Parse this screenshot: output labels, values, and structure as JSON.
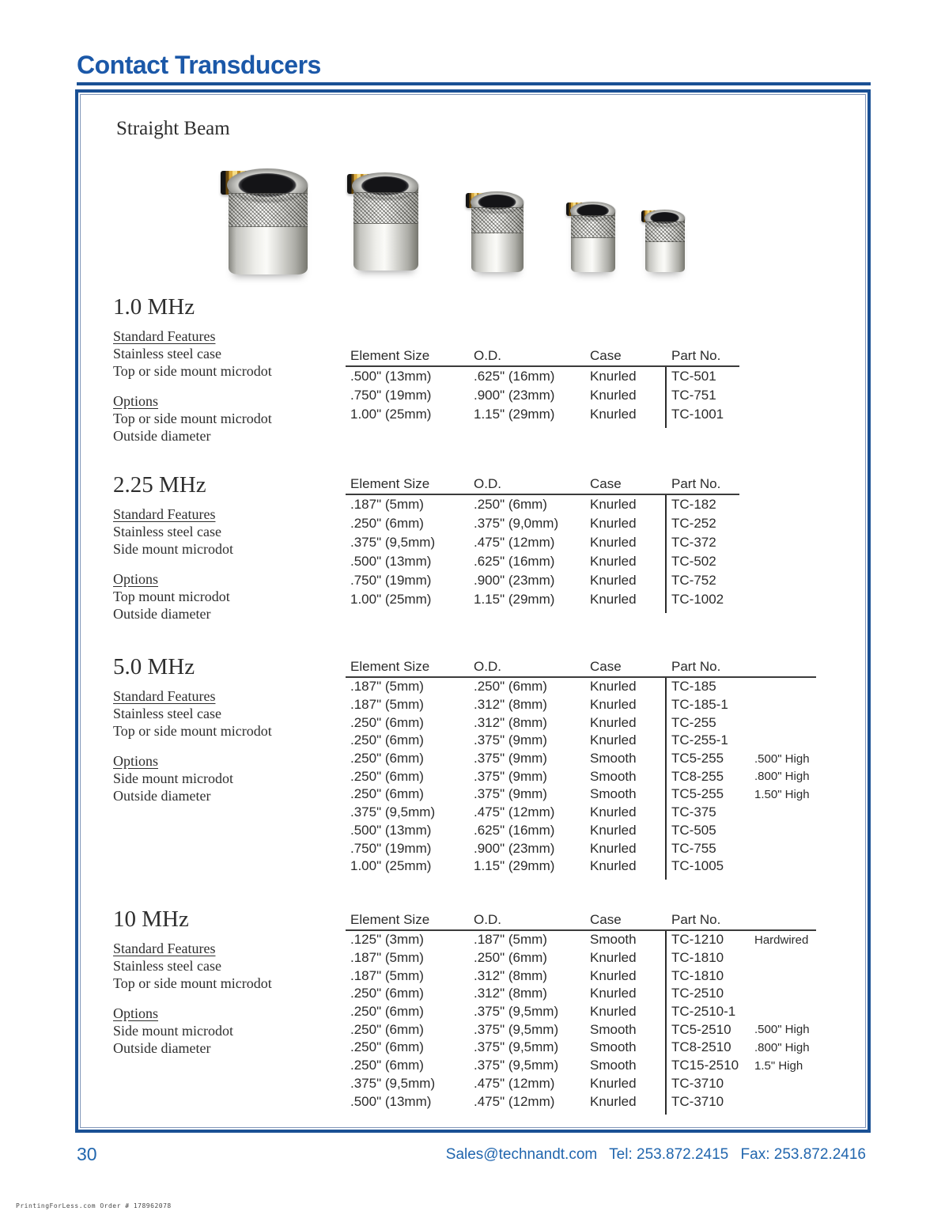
{
  "header": {
    "title": "Contact Transducers"
  },
  "box": {
    "subtitle": "Straight Beam"
  },
  "labels": {
    "standard_features": "Standard Features",
    "options": "Options",
    "columns": [
      "Element Size",
      "O.D.",
      "Case",
      "Part No."
    ]
  },
  "colors": {
    "accent_blue": "#1b58a8",
    "border_navy": "#1a5094",
    "footer_blue": "#2166ae"
  },
  "sections": [
    {
      "title": "1.0 MHz",
      "features": [
        "Stainless steel case",
        "Top or side mount microdot"
      ],
      "options": [
        "Top or side mount microdot",
        "Outside diameter"
      ],
      "rows": [
        [
          ".500\" (13mm)",
          ".625\" (16mm)",
          "Knurled",
          "TC-501",
          ""
        ],
        [
          ".750\" (19mm)",
          ".900\" (23mm)",
          "Knurled",
          "TC-751",
          ""
        ],
        [
          "1.00\" (25mm)",
          "1.15\" (29mm)",
          "Knurled",
          "TC-1001",
          ""
        ]
      ]
    },
    {
      "title": "2.25 MHz",
      "features": [
        "Stainless steel case",
        "Side mount microdot"
      ],
      "options": [
        "Top mount microdot",
        "Outside diameter"
      ],
      "rows": [
        [
          ".187\" (5mm)",
          ".250\" (6mm)",
          "Knurled",
          "TC-182",
          ""
        ],
        [
          ".250\" (6mm)",
          ".375\" (9,0mm)",
          "Knurled",
          "TC-252",
          ""
        ],
        [
          ".375\" (9,5mm)",
          ".475\" (12mm)",
          "Knurled",
          "TC-372",
          ""
        ],
        [
          ".500\" (13mm)",
          ".625\" (16mm)",
          "Knurled",
          "TC-502",
          ""
        ],
        [
          ".750\" (19mm)",
          ".900\" (23mm)",
          "Knurled",
          "TC-752",
          ""
        ],
        [
          "1.00\" (25mm)",
          "1.15\" (29mm)",
          "Knurled",
          "TC-1002",
          ""
        ]
      ]
    },
    {
      "title": "5.0 MHz",
      "features": [
        "Stainless steel case",
        "Top or side mount microdot"
      ],
      "options": [
        "Side mount microdot",
        "Outside diameter"
      ],
      "rows": [
        [
          ".187\" (5mm)",
          ".250\" (6mm)",
          "Knurled",
          "TC-185",
          ""
        ],
        [
          ".187\" (5mm)",
          ".312\" (8mm)",
          "Knurled",
          "TC-185-1",
          ""
        ],
        [
          ".250\" (6mm)",
          ".312\" (8mm)",
          "Knurled",
          "TC-255",
          ""
        ],
        [
          ".250\" (6mm)",
          ".375\" (9mm)",
          "Knurled",
          "TC-255-1",
          ""
        ],
        [
          ".250\" (6mm)",
          ".375\" (9mm)",
          "Smooth",
          "TC5-255",
          ".500\" High"
        ],
        [
          ".250\" (6mm)",
          ".375\" (9mm)",
          "Smooth",
          "TC8-255",
          ".800\" High"
        ],
        [
          ".250\" (6mm)",
          ".375\" (9mm)",
          "Smooth",
          "TC5-255",
          "1.50\" High"
        ],
        [
          ".375\" (9,5mm)",
          ".475\" (12mm)",
          "Knurled",
          "TC-375",
          ""
        ],
        [
          ".500\" (13mm)",
          ".625\" (16mm)",
          "Knurled",
          "TC-505",
          ""
        ],
        [
          ".750\" (19mm)",
          ".900\" (23mm)",
          "Knurled",
          "TC-755",
          ""
        ],
        [
          "1.00\" (25mm)",
          "1.15\" (29mm)",
          "Knurled",
          "TC-1005",
          ""
        ]
      ]
    },
    {
      "title": "10 MHz",
      "features": [
        "Stainless steel case",
        "Top or side mount microdot"
      ],
      "options": [
        "Side mount microdot",
        "Outside diameter"
      ],
      "rows": [
        [
          ".125\" (3mm)",
          ".187\" (5mm)",
          "Smooth",
          "TC-1210",
          "Hardwired"
        ],
        [
          ".187\" (5mm)",
          ".250\" (6mm)",
          "Knurled",
          "TC-1810",
          ""
        ],
        [
          ".187\" (5mm)",
          ".312\" (8mm)",
          "Knurled",
          "TC-1810",
          ""
        ],
        [
          ".250\" (6mm)",
          ".312\" (8mm)",
          "Knurled",
          "TC-2510",
          ""
        ],
        [
          ".250\" (6mm)",
          ".375\" (9,5mm)",
          "Knurled",
          "TC-2510-1",
          ""
        ],
        [
          ".250\" (6mm)",
          ".375\" (9,5mm)",
          "Smooth",
          "TC5-2510",
          ".500\" High"
        ],
        [
          ".250\" (6mm)",
          ".375\" (9,5mm)",
          "Smooth",
          "TC8-2510",
          ".800\" High"
        ],
        [
          ".250\" (6mm)",
          ".375\" (9,5mm)",
          "Smooth",
          "TC15-2510",
          "1.5\" High"
        ],
        [
          ".375\" (9,5mm)",
          ".475\" (12mm)",
          "Knurled",
          "TC-3710",
          ""
        ],
        [
          ".500\" (13mm)",
          ".475\" (12mm)",
          "Knurled",
          "TC-3710",
          ""
        ]
      ]
    }
  ],
  "footer": {
    "page_number": "30",
    "email": "Sales@technandt.com",
    "tel": "Tel: 253.872.2415",
    "fax": "Fax: 253.872.2416"
  },
  "print_note": "PrintingForLess.com Order # 178962078"
}
